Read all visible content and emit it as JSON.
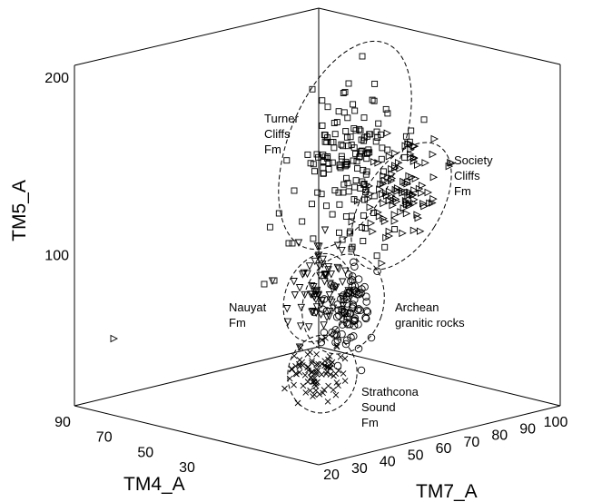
{
  "chart_data": {
    "type": "scatter",
    "projection": "3d",
    "grid": false,
    "axes": {
      "x": {
        "label": "TM4_A",
        "ticks": [
          90,
          70,
          50,
          30
        ],
        "range": [
          20,
          90
        ]
      },
      "z": {
        "label": "TM7_A",
        "ticks": [
          20,
          30,
          40,
          50,
          60,
          70,
          80,
          90,
          100
        ],
        "range": [
          15,
          100
        ]
      },
      "y": {
        "label": "TM5_A",
        "ticks": [
          100,
          200
        ],
        "range": [
          15,
          200
        ]
      }
    },
    "groups": [
      {
        "label_lines": [
          "Turner",
          "Cliffs",
          "Fm"
        ],
        "marker": "square"
      },
      {
        "label_lines": [
          "Society",
          "Cliffs",
          "Fm"
        ],
        "marker": "triangle-right"
      },
      {
        "label_lines": [
          "Nauyat",
          "Fm"
        ],
        "marker": "triangle-down"
      },
      {
        "label_lines": [
          "Archean",
          "granitic rocks"
        ],
        "marker": "circle"
      },
      {
        "label_lines": [
          "Strathcona",
          "Sound",
          "Fm"
        ],
        "marker": "cross"
      }
    ]
  }
}
